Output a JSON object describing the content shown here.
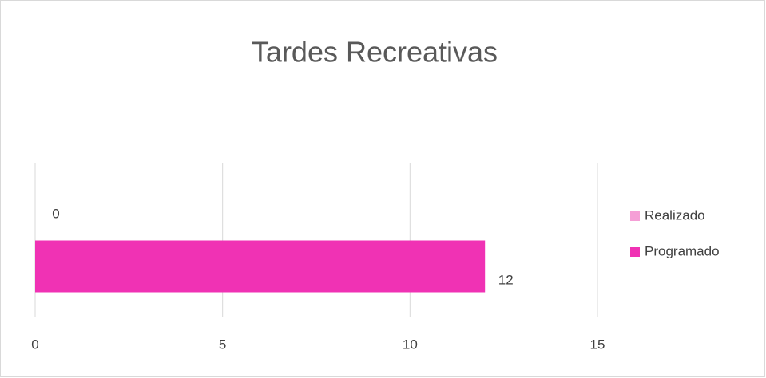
{
  "chart_data": {
    "type": "bar",
    "orientation": "horizontal",
    "title": "Tardes Recreativas",
    "categories": [
      null
    ],
    "series": [
      {
        "name": "Realizado",
        "color": "#f59fd6",
        "values": [
          0
        ]
      },
      {
        "name": "Programado",
        "color": "#f032b4",
        "values": [
          12
        ]
      }
    ],
    "xlim": [
      0,
      15
    ],
    "xticks": [
      0,
      5,
      10,
      15
    ],
    "grid": true,
    "legend": "right"
  }
}
